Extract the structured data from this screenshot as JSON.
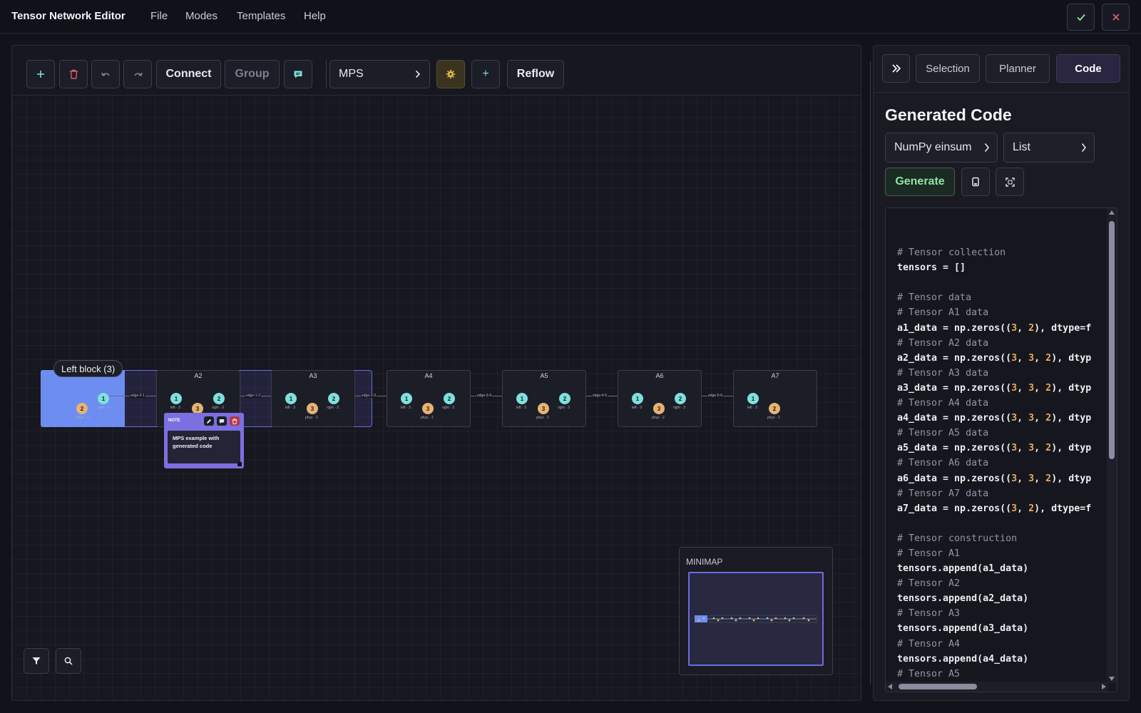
{
  "app": {
    "title": "Tensor Network Editor",
    "menu": [
      "File",
      "Modes",
      "Templates",
      "Help"
    ]
  },
  "toolbar": {
    "connect_label": "Connect",
    "group_label": "Group",
    "template_select": "MPS",
    "add_label": "+",
    "reflow_label": "Reflow"
  },
  "canvas": {
    "group_badge": "Left block (3)",
    "tensors": [
      "A1",
      "A2",
      "A3",
      "A4",
      "A5",
      "A6",
      "A7"
    ],
    "edges": [
      "edge-0-1",
      "edge-1-2",
      "edge-2-3",
      "edge-3-4",
      "edge-4-5",
      "edge-5-6"
    ],
    "index_labels": {
      "left": "left · 3",
      "right": "right · 3",
      "phys": "phys · 2"
    },
    "index_numbers": {
      "one": "1",
      "two": "2",
      "three": "3"
    },
    "note": {
      "title": "NOTE",
      "text": "MPS example with generated code"
    },
    "minimap_title": "MINIMAP"
  },
  "right_panel": {
    "tabs": [
      "Selection",
      "Planner",
      "Code"
    ],
    "active_tab": "Code",
    "heading": "Generated Code",
    "engine_select": "NumPy einsum",
    "format_select": "List",
    "generate_label": "Generate",
    "code_lines": [
      [],
      [
        {
          "t": "# Tensor collection",
          "c": "comment"
        }
      ],
      [
        {
          "t": "tensors = []",
          "c": "code"
        }
      ],
      [],
      [
        {
          "t": "# Tensor data",
          "c": "comment"
        }
      ],
      [
        {
          "t": "# Tensor A1 data",
          "c": "comment"
        }
      ],
      [
        {
          "t": "a1_data = np.zeros((",
          "c": "code"
        },
        {
          "t": "3",
          "c": "num"
        },
        {
          "t": ", ",
          "c": "code"
        },
        {
          "t": "2",
          "c": "num"
        },
        {
          "t": "), dtype=f",
          "c": "code"
        }
      ],
      [
        {
          "t": "# Tensor A2 data",
          "c": "comment"
        }
      ],
      [
        {
          "t": "a2_data = np.zeros((",
          "c": "code"
        },
        {
          "t": "3",
          "c": "num"
        },
        {
          "t": ", ",
          "c": "code"
        },
        {
          "t": "3",
          "c": "num"
        },
        {
          "t": ", ",
          "c": "code"
        },
        {
          "t": "2",
          "c": "num"
        },
        {
          "t": "), dtyp",
          "c": "code"
        }
      ],
      [
        {
          "t": "# Tensor A3 data",
          "c": "comment"
        }
      ],
      [
        {
          "t": "a3_data = np.zeros((",
          "c": "code"
        },
        {
          "t": "3",
          "c": "num"
        },
        {
          "t": ", ",
          "c": "code"
        },
        {
          "t": "3",
          "c": "num"
        },
        {
          "t": ", ",
          "c": "code"
        },
        {
          "t": "2",
          "c": "num"
        },
        {
          "t": "), dtyp",
          "c": "code"
        }
      ],
      [
        {
          "t": "# Tensor A4 data",
          "c": "comment"
        }
      ],
      [
        {
          "t": "a4_data = np.zeros((",
          "c": "code"
        },
        {
          "t": "3",
          "c": "num"
        },
        {
          "t": ", ",
          "c": "code"
        },
        {
          "t": "3",
          "c": "num"
        },
        {
          "t": ", ",
          "c": "code"
        },
        {
          "t": "2",
          "c": "num"
        },
        {
          "t": "), dtyp",
          "c": "code"
        }
      ],
      [
        {
          "t": "# Tensor A5 data",
          "c": "comment"
        }
      ],
      [
        {
          "t": "a5_data = np.zeros((",
          "c": "code"
        },
        {
          "t": "3",
          "c": "num"
        },
        {
          "t": ", ",
          "c": "code"
        },
        {
          "t": "3",
          "c": "num"
        },
        {
          "t": ", ",
          "c": "code"
        },
        {
          "t": "2",
          "c": "num"
        },
        {
          "t": "), dtyp",
          "c": "code"
        }
      ],
      [
        {
          "t": "# Tensor A6 data",
          "c": "comment"
        }
      ],
      [
        {
          "t": "a6_data = np.zeros((",
          "c": "code"
        },
        {
          "t": "3",
          "c": "num"
        },
        {
          "t": ", ",
          "c": "code"
        },
        {
          "t": "3",
          "c": "num"
        },
        {
          "t": ", ",
          "c": "code"
        },
        {
          "t": "2",
          "c": "num"
        },
        {
          "t": "), dtyp",
          "c": "code"
        }
      ],
      [
        {
          "t": "# Tensor A7 data",
          "c": "comment"
        }
      ],
      [
        {
          "t": "a7_data = np.zeros((",
          "c": "code"
        },
        {
          "t": "3",
          "c": "num"
        },
        {
          "t": ", ",
          "c": "code"
        },
        {
          "t": "2",
          "c": "num"
        },
        {
          "t": "), dtype=f",
          "c": "code"
        }
      ],
      [],
      [
        {
          "t": "# Tensor construction",
          "c": "comment"
        }
      ],
      [
        {
          "t": "# Tensor A1",
          "c": "comment"
        }
      ],
      [
        {
          "t": "tensors.append(a1_data)",
          "c": "code"
        }
      ],
      [
        {
          "t": "# Tensor A2",
          "c": "comment"
        }
      ],
      [
        {
          "t": "tensors.append(a2_data)",
          "c": "code"
        }
      ],
      [
        {
          "t": "# Tensor A3",
          "c": "comment"
        }
      ],
      [
        {
          "t": "tensors.append(a3_data)",
          "c": "code"
        }
      ],
      [
        {
          "t": "# Tensor A4",
          "c": "comment"
        }
      ],
      [
        {
          "t": "tensors.append(a4_data)",
          "c": "code"
        }
      ],
      [
        {
          "t": "# Tensor A5",
          "c": "comment"
        }
      ]
    ]
  },
  "icons": {
    "confirm": "check-icon",
    "close": "close-icon",
    "add": "plus-icon",
    "delete": "trash-icon",
    "undo": "undo-icon",
    "redo": "redo-icon",
    "comment": "comment-icon",
    "settings": "gear-icon",
    "collapse": "double-chevron-right-icon",
    "copy": "copy-icon",
    "expand": "expand-icon",
    "filter": "filter-icon",
    "search": "search-icon"
  },
  "colors": {
    "accent": "#6d6ce0",
    "group_highlight": "#6d8df0",
    "index_cyan": "#7fe0dc",
    "index_orange": "#e8b273",
    "generate_green": "#8fe3a6",
    "delete_red": "#e05a6a",
    "settings_gold": "#e8c04a"
  }
}
